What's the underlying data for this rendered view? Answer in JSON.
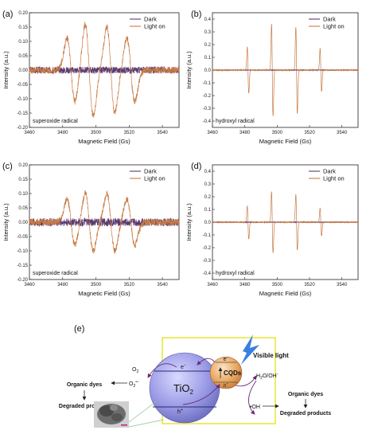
{
  "chart_data": [
    {
      "panel": "(a)",
      "type": "line",
      "xlabel": "Magnetic Field (Gs)",
      "ylabel": "Intensity (a.u.)",
      "xlim": [
        3460,
        3550
      ],
      "ylim": [
        -0.2,
        0.2
      ],
      "xticks": [
        3460,
        3480,
        3500,
        3520,
        3540
      ],
      "yticks": [
        -0.2,
        -0.15,
        -0.1,
        -0.05,
        0,
        0.05,
        0.1,
        0.15,
        0.2
      ],
      "ytick_labels": [
        "-0.20",
        "-0.15",
        "-0.10",
        "-0.05",
        "0.00",
        "0.05",
        "0.10",
        "0.15",
        "0.20"
      ],
      "legend_position": "top-right",
      "annotation": "superoxide radical",
      "pattern": "superoxide",
      "series": [
        {
          "name": "Dark",
          "color": "#5b3a6e",
          "peaks": [],
          "noise": 0.012
        },
        {
          "name": "Light on",
          "color": "#c97b45",
          "noise": 0.012,
          "peaks": [
            {
              "x": 3485,
              "a": 0.11
            },
            {
              "x": 3496,
              "a": 0.16
            },
            {
              "x": 3509,
              "a": 0.15
            },
            {
              "x": 3521,
              "a": 0.11
            }
          ]
        }
      ]
    },
    {
      "panel": "(b)",
      "type": "line",
      "xlabel": "Magnetic Field (Gs)",
      "ylabel": "Intensity (a.u.)",
      "xlim": [
        3460,
        3550
      ],
      "ylim": [
        -0.45,
        0.45
      ],
      "xticks": [
        3460,
        3480,
        3500,
        3520,
        3540
      ],
      "yticks": [
        -0.4,
        -0.3,
        -0.2,
        -0.1,
        0,
        0.1,
        0.2,
        0.3,
        0.4
      ],
      "ytick_labels": [
        "-0.4",
        "-0.3",
        "-0.2",
        "-0.1",
        "0.0",
        "0.1",
        "0.2",
        "0.3",
        "0.4"
      ],
      "legend_position": "top-right",
      "annotation": "hydroxyl radical",
      "pattern": "hydroxyl",
      "series": [
        {
          "name": "Dark",
          "color": "#5b3a6e",
          "peaks": [],
          "noise": 0.003
        },
        {
          "name": "Light on",
          "color": "#c97b45",
          "noise": 0.004,
          "peaks": [
            {
              "x": 3482,
              "a": 0.18
            },
            {
              "x": 3497,
              "a": 0.36
            },
            {
              "x": 3512,
              "a": 0.34
            },
            {
              "x": 3527,
              "a": 0.17
            }
          ]
        }
      ]
    },
    {
      "panel": "(c)",
      "type": "line",
      "xlabel": "Magnetic Field (Gs)",
      "ylabel": "Intensity (a.u.)",
      "xlim": [
        3460,
        3550
      ],
      "ylim": [
        -0.2,
        0.2
      ],
      "xticks": [
        3460,
        3480,
        3500,
        3520,
        3540
      ],
      "yticks": [
        -0.2,
        -0.15,
        -0.1,
        -0.05,
        0,
        0.05,
        0.1,
        0.15,
        0.2
      ],
      "ytick_labels": [
        "-0.20",
        "-0.15",
        "-0.10",
        "-0.05",
        "0.00",
        "0.05",
        "0.10",
        "0.15",
        "0.20"
      ],
      "legend_position": "top-right",
      "annotation": "superoxide radical",
      "pattern": "superoxide",
      "series": [
        {
          "name": "Dark",
          "color": "#5b3a6e",
          "peaks": [],
          "noise": 0.014
        },
        {
          "name": "Light on",
          "color": "#c97b45",
          "noise": 0.012,
          "peaks": [
            {
              "x": 3485,
              "a": 0.08
            },
            {
              "x": 3496,
              "a": 0.1
            },
            {
              "x": 3509,
              "a": 0.1
            },
            {
              "x": 3521,
              "a": 0.08
            }
          ]
        }
      ]
    },
    {
      "panel": "(d)",
      "type": "line",
      "xlabel": "Magnetic Field (Gs)",
      "ylabel": "Intensity (a.u.)",
      "xlim": [
        3460,
        3550
      ],
      "ylim": [
        -0.45,
        0.45
      ],
      "xticks": [
        3460,
        3480,
        3500,
        3520,
        3540
      ],
      "yticks": [
        -0.4,
        -0.3,
        -0.2,
        -0.1,
        0,
        0.1,
        0.2,
        0.3,
        0.4
      ],
      "ytick_labels": [
        "-0.4",
        "-0.3",
        "-0.2",
        "-0.1",
        "0.0",
        "0.1",
        "0.2",
        "0.3",
        "0.4"
      ],
      "legend_position": "top-right",
      "annotation": "hydroxyl radical",
      "pattern": "hydroxyl",
      "series": [
        {
          "name": "Dark",
          "color": "#5b3a6e",
          "peaks": [],
          "noise": 0.003
        },
        {
          "name": "Light on",
          "color": "#c97b45",
          "noise": 0.004,
          "peaks": [
            {
              "x": 3482,
              "a": 0.13
            },
            {
              "x": 3497,
              "a": 0.24
            },
            {
              "x": 3512,
              "a": 0.22
            },
            {
              "x": 3527,
              "a": 0.11
            }
          ]
        }
      ]
    }
  ],
  "schematic": {
    "panel": "(e)",
    "tio2": "TiO",
    "tio2_sub": "2",
    "cqds": "CQDs",
    "visible_light": "Visible light",
    "left_o2": "O",
    "left_o2_sub": "2",
    "left_o2r": "O",
    "left_o2r_sub": "2",
    "left_o2r_sup": "•−",
    "left_dyes": "Organic dyes",
    "left_products": "Degraded products",
    "right_h2o": "H",
    "right_h2o_sub": "2",
    "right_h2o_rest": "O/OH",
    "right_h2o_sup": "-",
    "right_oh": "•OH",
    "right_dyes": "Organic dyes",
    "right_products": "Degraded products",
    "electron": "e",
    "electron_sup": "−",
    "hole": "h",
    "hole_sup": "+",
    "colors": {
      "tio2": "#8f8fe0",
      "cqds": "#e8a060",
      "frame": "#e3e000",
      "bolt": "#3a7fe0",
      "arrow": "#6a2a7a"
    }
  }
}
